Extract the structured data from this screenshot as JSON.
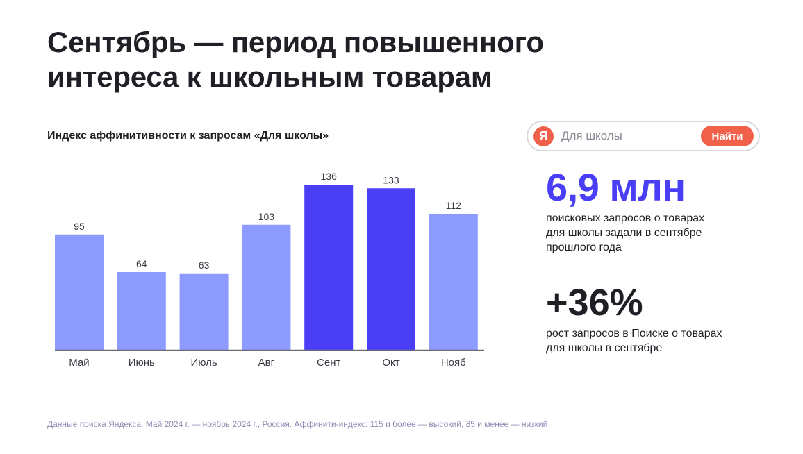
{
  "title": {
    "line1": "Сентябрь — период повышенного",
    "line2": "интереса к школьным товарам"
  },
  "chart_data": {
    "type": "bar",
    "title": "Индекс аффинитивности к запросам «Для школы»",
    "categories": [
      "Май",
      "Июнь",
      "Июль",
      "Авг",
      "Сент",
      "Окт",
      "Нояб"
    ],
    "values": [
      95,
      64,
      63,
      103,
      136,
      133,
      112
    ],
    "highlighted": [
      false,
      false,
      false,
      false,
      true,
      true,
      false
    ],
    "xlabel": "",
    "ylabel": "",
    "ylim": [
      0,
      136
    ],
    "grid": false,
    "colors": {
      "default": "#8c9bfd",
      "highlight": "#4a3ff7",
      "axis": "#6b6b78",
      "label": "#3a3a44"
    }
  },
  "search": {
    "logo": "Я",
    "placeholder": "Для школы",
    "button_label": "Найти",
    "accent": "#f0604a"
  },
  "stats": {
    "stat1": {
      "value": "6,9 млн",
      "desc_lines": [
        "поисковых запросов о товарах",
        "для школы задали в сентябре",
        "прошлого года"
      ]
    },
    "stat2": {
      "value": "+36%",
      "desc_lines": [
        "рост запросов в Поиске о товарах",
        "для школы в сентябре"
      ]
    }
  },
  "footer": "Данные поиска Яндекса. Май 2024 г. — ноябрь 2024 г., Россия. Аффинити-индекс: 115 и более — высокий, 85 и менее — низкий"
}
